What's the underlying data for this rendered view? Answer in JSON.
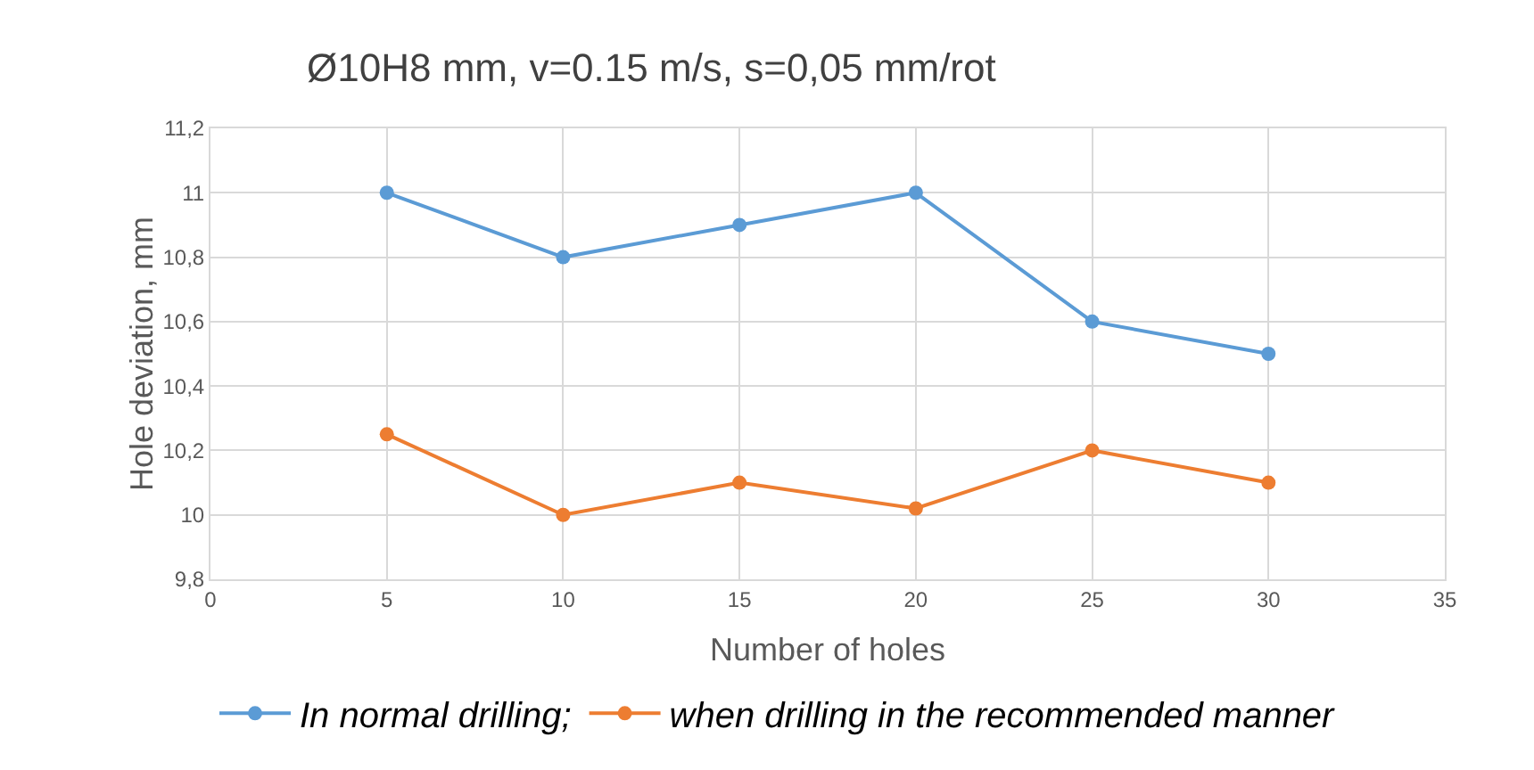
{
  "chart_data": {
    "type": "line",
    "title": "Ø10H8 mm, v=0.15 m/s, s=0,05 mm/rot",
    "xlabel": "Number of holes",
    "ylabel": "Hole deviation, mm",
    "x": [
      5,
      10,
      15,
      20,
      25,
      30
    ],
    "series": [
      {
        "name": "In normal drilling;",
        "color": "#5b9bd5",
        "values": [
          11.0,
          10.8,
          10.9,
          11.0,
          10.6,
          10.5
        ]
      },
      {
        "name": "when drilling in the recommended manner",
        "color": "#ed7d31",
        "values": [
          10.25,
          10.0,
          10.1,
          10.02,
          10.2,
          10.1
        ]
      }
    ],
    "xlim": [
      0,
      35
    ],
    "xticks": [
      0,
      5,
      10,
      15,
      20,
      25,
      30,
      35
    ],
    "ylim": [
      9.8,
      11.2
    ],
    "yticks": [
      {
        "value": 9.8,
        "label": "9,8"
      },
      {
        "value": 10,
        "label": "10"
      },
      {
        "value": 10.2,
        "label": "10,2"
      },
      {
        "value": 10.4,
        "label": "10,4"
      },
      {
        "value": 10.6,
        "label": "10,6"
      },
      {
        "value": 10.8,
        "label": "10,8"
      },
      {
        "value": 11,
        "label": "11"
      },
      {
        "value": 11.2,
        "label": "11,2"
      }
    ],
    "grid": true,
    "legend": "bottom",
    "marker": "circle",
    "line_style": "solid"
  }
}
